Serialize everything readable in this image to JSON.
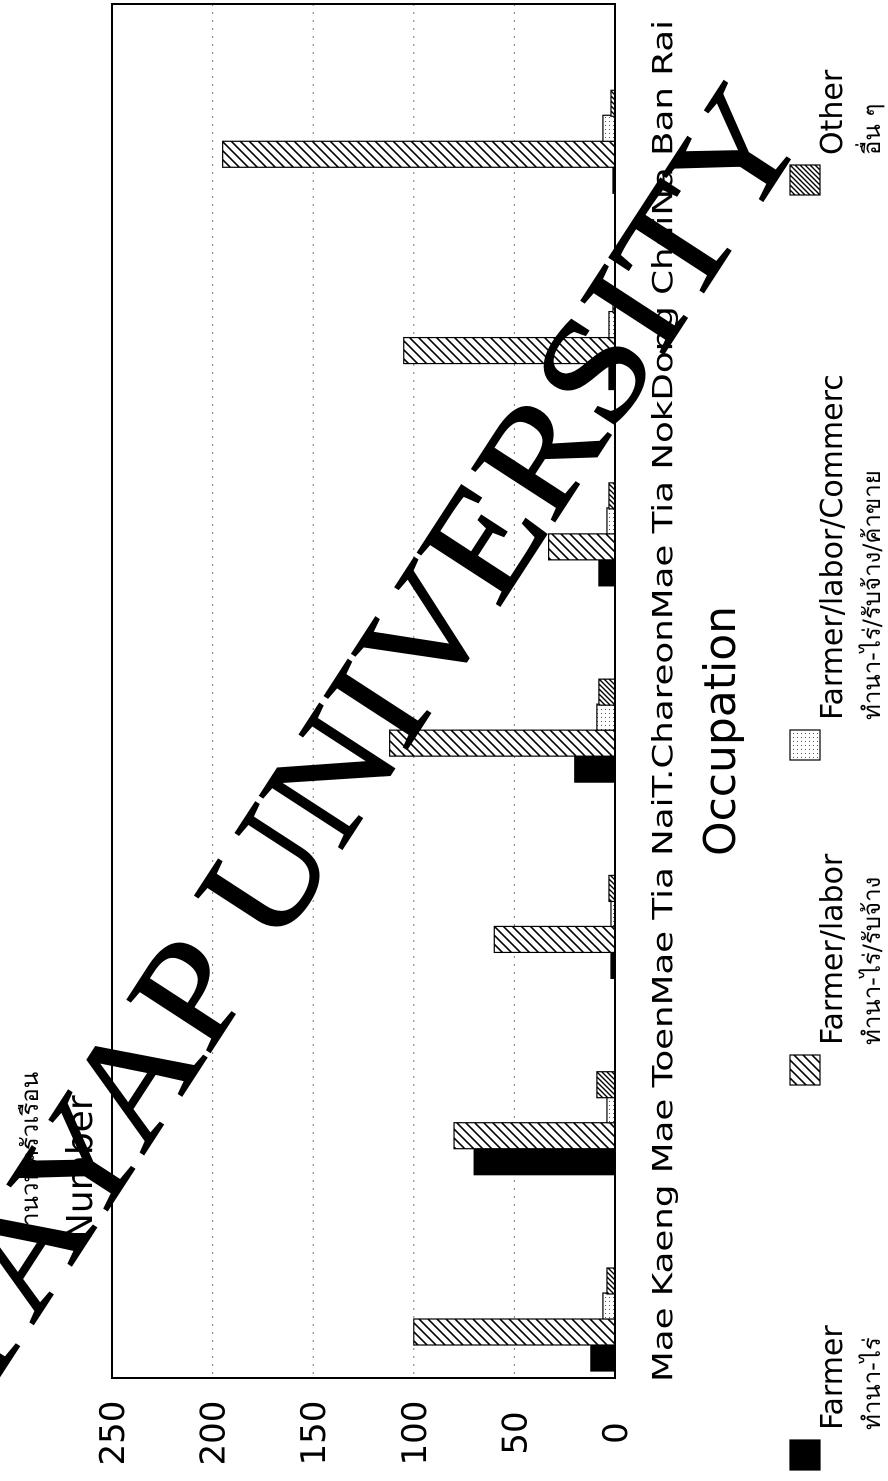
{
  "chart_data": {
    "type": "bar",
    "orientation": "rotated (values run right-to-left, categories top-to-bottom)",
    "title": "Occupation",
    "ylabel_th": "จำนวนครัวเรือน",
    "ylabel": "Number",
    "ylim": [
      0,
      250
    ],
    "yticks": [
      "0",
      "50",
      "100",
      "150",
      "200",
      "250"
    ],
    "grid": "dotted value gridlines",
    "categories": [
      "Mae Kaeng",
      "Mae Toen",
      "Mae Tia Nai",
      "T.Chareon",
      "Mae Tia Nok",
      "Dong Chai",
      "Na Ban Rai"
    ],
    "category_axis_text": "Mae Kaeng Mae ToenMae Tia NaiT.ChareonMae Tia NokDong ChaiNa Ban Rai",
    "series": [
      {
        "name": "Farmer",
        "name_th": "ทำนา-ไร่",
        "pattern": "solid",
        "values": [
          12,
          70,
          2,
          20,
          8,
          3,
          1
        ]
      },
      {
        "name": "Farmer/labor",
        "name_th": "ทำนา-ไร่/รับจ้าง",
        "pattern": "hatch",
        "values": [
          100,
          80,
          60,
          112,
          33,
          105,
          195
        ]
      },
      {
        "name": "Farmer/labor/Commerc",
        "name_th": "ทำนา-ไร่/รับจ้าง/ค้าขาย",
        "pattern": "dots",
        "values": [
          6,
          4,
          2,
          9,
          4,
          3,
          6
        ]
      },
      {
        "name": "Other",
        "name_th": "อื่น ๆ",
        "pattern": "crosshatch",
        "values": [
          4,
          9,
          3,
          8,
          3,
          1,
          2
        ]
      }
    ],
    "legend": "bottom"
  },
  "watermark": "PAYAP UNIVERSITY"
}
